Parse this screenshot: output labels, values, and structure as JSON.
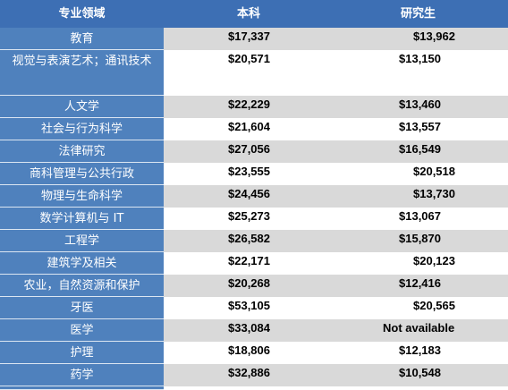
{
  "table": {
    "header": [
      "专业领域",
      "本科",
      "研究生"
    ],
    "rows": [
      [
        "教育",
        "$17,337",
        "$13,962"
      ],
      [
        "视觉与表演艺术；通讯技术",
        "$20,571",
        "$13,150"
      ],
      [
        "人文学",
        "$22,229",
        "$13,460"
      ],
      [
        "社会与行为科学",
        "$21,604",
        "$13,557"
      ],
      [
        "法律研究",
        "$27,056",
        "$16,549"
      ],
      [
        "商科管理与公共行政",
        "$23,555",
        "$20,518"
      ],
      [
        "物理与生命科学",
        "$24,456",
        "$13,730"
      ],
      [
        "数学计算机与 IT",
        "$25,273",
        "$13,067"
      ],
      [
        "工程学",
        "$26,582",
        "$15,870"
      ],
      [
        "建筑学及相关",
        "$22,171",
        "$20,123"
      ],
      [
        "农业，自然资源和保护",
        "$20,268",
        "$12,416"
      ],
      [
        "牙医",
        "$53,105",
        "$20,565"
      ],
      [
        "医学",
        "$33,084",
        "Not available"
      ],
      [
        "护理",
        "$18,806",
        "$12,183"
      ],
      [
        "药学",
        "$32,886",
        "$10,548"
      ]
    ]
  }
}
